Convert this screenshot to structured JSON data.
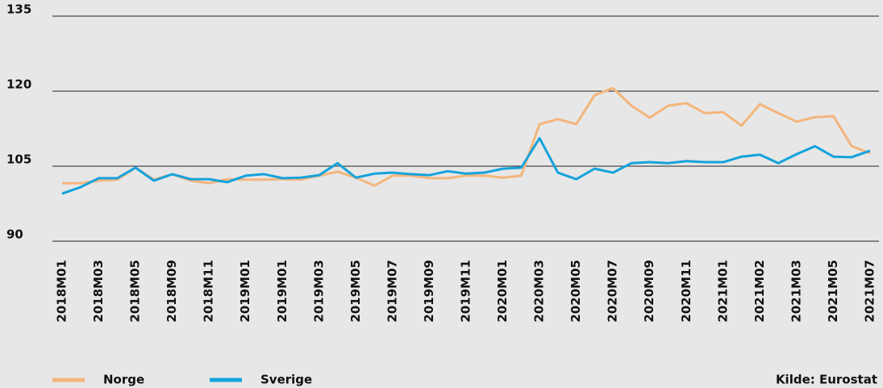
{
  "chart_data": {
    "type": "line",
    "categories": [
      "2018M01",
      null,
      "2018M03",
      null,
      "2018M05",
      null,
      "2018M09",
      null,
      "2018M11",
      null,
      "2019M01",
      null,
      "2019M01",
      null,
      "2019M03",
      null,
      "2019M05",
      null,
      "2019M07",
      null,
      "2019M09",
      null,
      "2019M11",
      null,
      "2020M01",
      null,
      "2020M03",
      null,
      "2020M05",
      null,
      "2020M07",
      null,
      "2020M09",
      null,
      "2020M11",
      null,
      "2021M01",
      null,
      "2021M02",
      null,
      "2021M03",
      null,
      "2021M05",
      null,
      "2021M07"
    ],
    "series": [
      {
        "name": "Norge",
        "color": "#f4b57c",
        "values": [
          101.6,
          101.6,
          102.1,
          102.3,
          104.7,
          102.3,
          103.4,
          102.1,
          101.6,
          102.4,
          102.3,
          102.3,
          102.4,
          102.3,
          103.1,
          103.9,
          102.7,
          101.1,
          103.1,
          103.1,
          102.6,
          102.6,
          103.1,
          103.1,
          102.7,
          103.1,
          113.4,
          114.4,
          113.4,
          119.2,
          120.6,
          117.1,
          114.7,
          117.1,
          117.6,
          115.6,
          115.8,
          113.1,
          117.4,
          115.6,
          113.9,
          114.8,
          115.0,
          109.0,
          107.6
        ]
      },
      {
        "name": "Sverige",
        "color": "#14a3dc",
        "values": [
          99.5,
          100.8,
          102.6,
          102.6,
          104.7,
          102.1,
          103.4,
          102.4,
          102.4,
          101.8,
          103.1,
          103.4,
          102.6,
          102.7,
          103.2,
          105.6,
          102.7,
          103.5,
          103.7,
          103.4,
          103.2,
          104.0,
          103.5,
          103.7,
          104.5,
          104.7,
          110.6,
          103.7,
          102.4,
          104.5,
          103.7,
          105.6,
          105.8,
          105.6,
          106.0,
          105.8,
          105.8,
          106.9,
          107.3,
          105.6,
          107.4,
          109.0,
          106.9,
          106.8,
          108.1
        ]
      }
    ],
    "ylim": [
      90,
      135
    ],
    "yticks": [
      90,
      105,
      120,
      135
    ],
    "grid": true,
    "source": "Kilde: Eurostat",
    "legend": "bottom-left"
  }
}
